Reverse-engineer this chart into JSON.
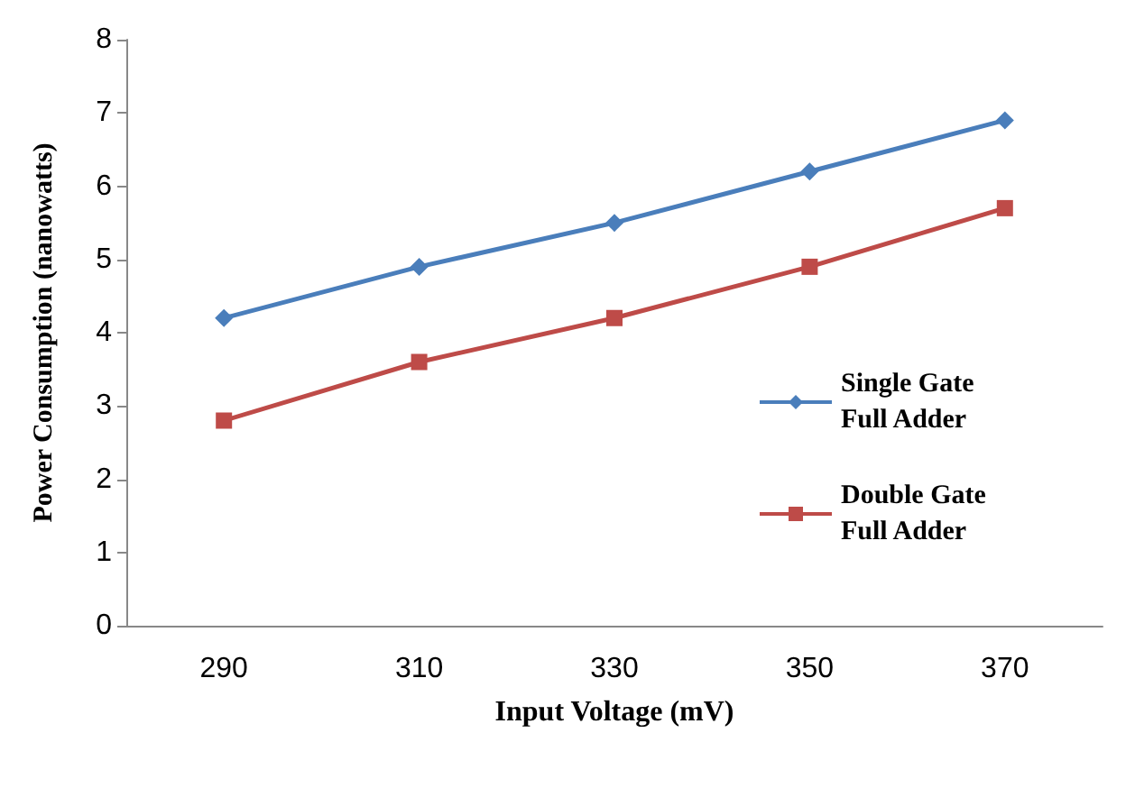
{
  "chart_data": {
    "type": "line",
    "xlabel": "Input Voltage (mV)",
    "ylabel": "Power Consumption (nanowatts)",
    "categories": [
      "290",
      "310",
      "330",
      "350",
      "370"
    ],
    "series": [
      {
        "name": "Single Gate Full Adder",
        "color": "#4a7ebb",
        "marker": "diamond",
        "values": [
          4.2,
          4.9,
          5.5,
          6.2,
          6.9
        ]
      },
      {
        "name": "Double Gate Full Adder",
        "color": "#be4b48",
        "marker": "square",
        "values": [
          2.8,
          3.6,
          4.2,
          4.9,
          5.7
        ]
      }
    ],
    "ylim": [
      0,
      8
    ],
    "yticks": [
      0,
      1,
      2,
      3,
      4,
      5,
      6,
      7,
      8
    ],
    "grid": false,
    "legend": "right"
  }
}
